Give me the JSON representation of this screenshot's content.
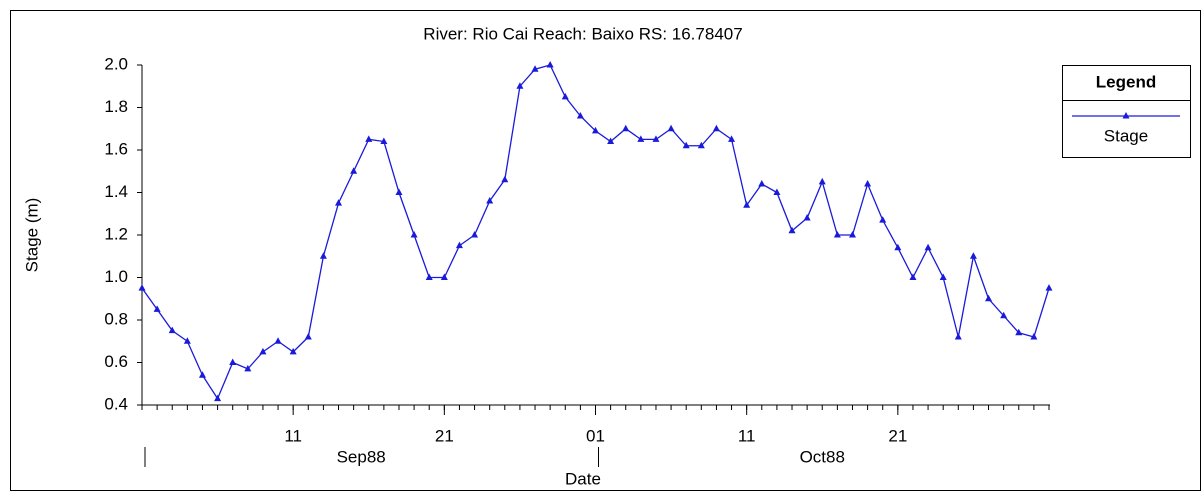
{
  "chart_data": {
    "type": "line",
    "title": "River: Rio Cai  Reach: Baixo  RS: 16.78407",
    "xlabel": "Date",
    "ylabel": "Stage  (m)",
    "x": [
      "1988-09-01",
      "1988-09-02",
      "1988-09-03",
      "1988-09-04",
      "1988-09-05",
      "1988-09-06",
      "1988-09-07",
      "1988-09-08",
      "1988-09-09",
      "1988-09-10",
      "1988-09-11",
      "1988-09-12",
      "1988-09-13",
      "1988-09-14",
      "1988-09-15",
      "1988-09-16",
      "1988-09-17",
      "1988-09-18",
      "1988-09-19",
      "1988-09-20",
      "1988-09-21",
      "1988-09-22",
      "1988-09-23",
      "1988-09-24",
      "1988-09-25",
      "1988-09-26",
      "1988-09-27",
      "1988-09-28",
      "1988-09-29",
      "1988-09-30",
      "1988-10-01",
      "1988-10-02",
      "1988-10-03",
      "1988-10-04",
      "1988-10-05",
      "1988-10-06",
      "1988-10-07",
      "1988-10-08",
      "1988-10-09",
      "1988-10-10",
      "1988-10-11",
      "1988-10-12",
      "1988-10-13",
      "1988-10-14",
      "1988-10-15",
      "1988-10-16",
      "1988-10-17",
      "1988-10-18",
      "1988-10-19",
      "1988-10-20",
      "1988-10-21",
      "1988-10-22",
      "1988-10-23",
      "1988-10-24",
      "1988-10-25",
      "1988-10-26",
      "1988-10-27",
      "1988-10-28",
      "1988-10-29",
      "1988-10-30",
      "1988-10-31"
    ],
    "series": [
      {
        "name": "Stage",
        "color": "#1a1adb",
        "values": [
          0.95,
          0.85,
          0.75,
          0.7,
          0.54,
          0.43,
          0.6,
          0.57,
          0.65,
          0.7,
          0.65,
          0.72,
          1.1,
          1.35,
          1.5,
          1.65,
          1.64,
          1.4,
          1.2,
          1.0,
          1.0,
          1.15,
          1.2,
          1.36,
          1.46,
          1.9,
          1.98,
          2.0,
          1.85,
          1.76,
          1.69,
          1.64,
          1.7,
          1.65,
          1.65,
          1.7,
          1.62,
          1.62,
          1.7,
          1.65,
          1.34,
          1.44,
          1.4,
          1.22,
          1.28,
          1.45,
          1.2,
          1.2,
          1.44,
          1.27,
          1.14,
          1.0,
          1.14,
          1.0,
          0.72,
          1.1,
          0.9,
          0.82,
          0.74,
          0.72,
          0.95
        ]
      }
    ],
    "xlim": [
      "1988-09-01",
      "1988-10-31"
    ],
    "xticks": [
      {
        "value": "1988-09-11",
        "label": "11"
      },
      {
        "value": "1988-09-21",
        "label": "21"
      },
      {
        "value": "1988-10-01",
        "label": "01"
      },
      {
        "value": "1988-10-11",
        "label": "11"
      },
      {
        "value": "1988-10-21",
        "label": "21"
      }
    ],
    "xgroups": [
      {
        "label": "Sep88",
        "start": "1988-09-01",
        "end": "1988-09-30"
      },
      {
        "label": "Oct88",
        "start": "1988-10-01",
        "end": "1988-10-31"
      }
    ],
    "ylim": [
      0.4,
      2.0
    ],
    "yticks": [
      0.4,
      0.6,
      0.8,
      {
        "value": 1,
        "label": "1.0"
      },
      1.2,
      1.4,
      1.6,
      1.8,
      {
        "value": 2,
        "label": "2.0"
      }
    ],
    "legend": {
      "title": "Legend",
      "position": "right"
    }
  }
}
